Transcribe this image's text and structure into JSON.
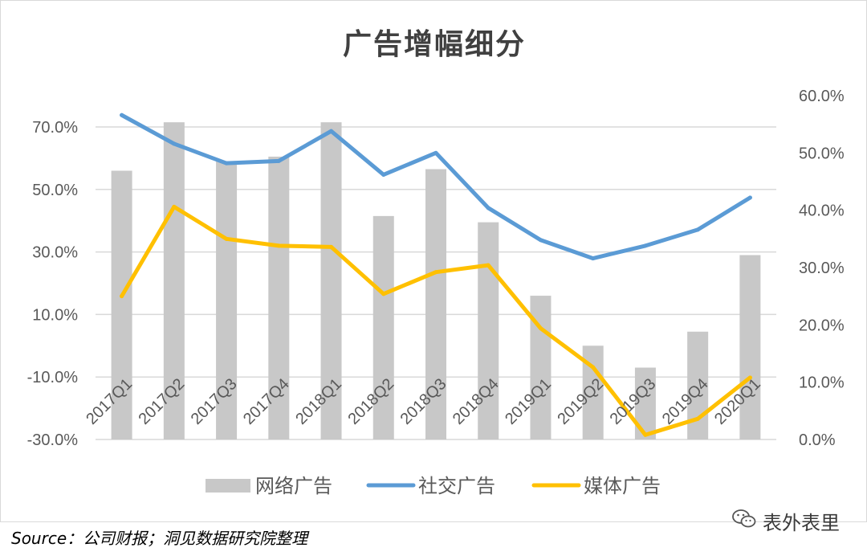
{
  "watermark": "表外表里",
  "source": "Source：公司财报；洞见数据研究院整理",
  "chart_data": {
    "type": "bar+line",
    "title": "广告增幅细分",
    "categories": [
      "2017Q1",
      "2017Q2",
      "2017Q3",
      "2017Q4",
      "2018Q1",
      "2018Q2",
      "2018Q3",
      "2018Q4",
      "2019Q1",
      "2019Q2",
      "2019Q3",
      "2019Q4",
      "2020Q1"
    ],
    "left_axis": {
      "min": -30,
      "max": 70,
      "ticks": [
        "70.0%",
        "50.0%",
        "30.0%",
        "10.0%",
        "-10.0%",
        "-30.0%"
      ],
      "tick_values": [
        70,
        50,
        30,
        10,
        -10,
        -30
      ]
    },
    "right_axis": {
      "min": 0,
      "max": 60,
      "ticks": [
        "60.0%",
        "50.0%",
        "40.0%",
        "30.0%",
        "20.0%",
        "10.0%",
        "0.0%"
      ],
      "tick_values": [
        60,
        50,
        40,
        30,
        20,
        10,
        0
      ]
    },
    "grid": true,
    "legend_position": "bottom",
    "series": [
      {
        "name": "网络广告",
        "type": "bar",
        "axis": "left",
        "color": "#c8c8c8",
        "values": [
          56,
          71.5,
          59,
          60.5,
          71.5,
          41.5,
          56.5,
          39.5,
          16,
          0,
          -7,
          4.5,
          29
        ]
      },
      {
        "name": "社交广告",
        "type": "line",
        "axis": "right",
        "color": "#5b9bd5",
        "values": [
          56.6,
          51.6,
          48.2,
          48.6,
          53.8,
          46.2,
          50.0,
          40.4,
          34.8,
          31.6,
          33.8,
          36.6,
          42.2
        ]
      },
      {
        "name": "媒体广告",
        "type": "line",
        "axis": "right",
        "color": "#ffc000",
        "values": [
          25.0,
          40.6,
          35.0,
          33.8,
          33.6,
          25.4,
          29.2,
          30.4,
          19.4,
          12.6,
          0.8,
          3.6,
          10.8
        ]
      }
    ]
  }
}
